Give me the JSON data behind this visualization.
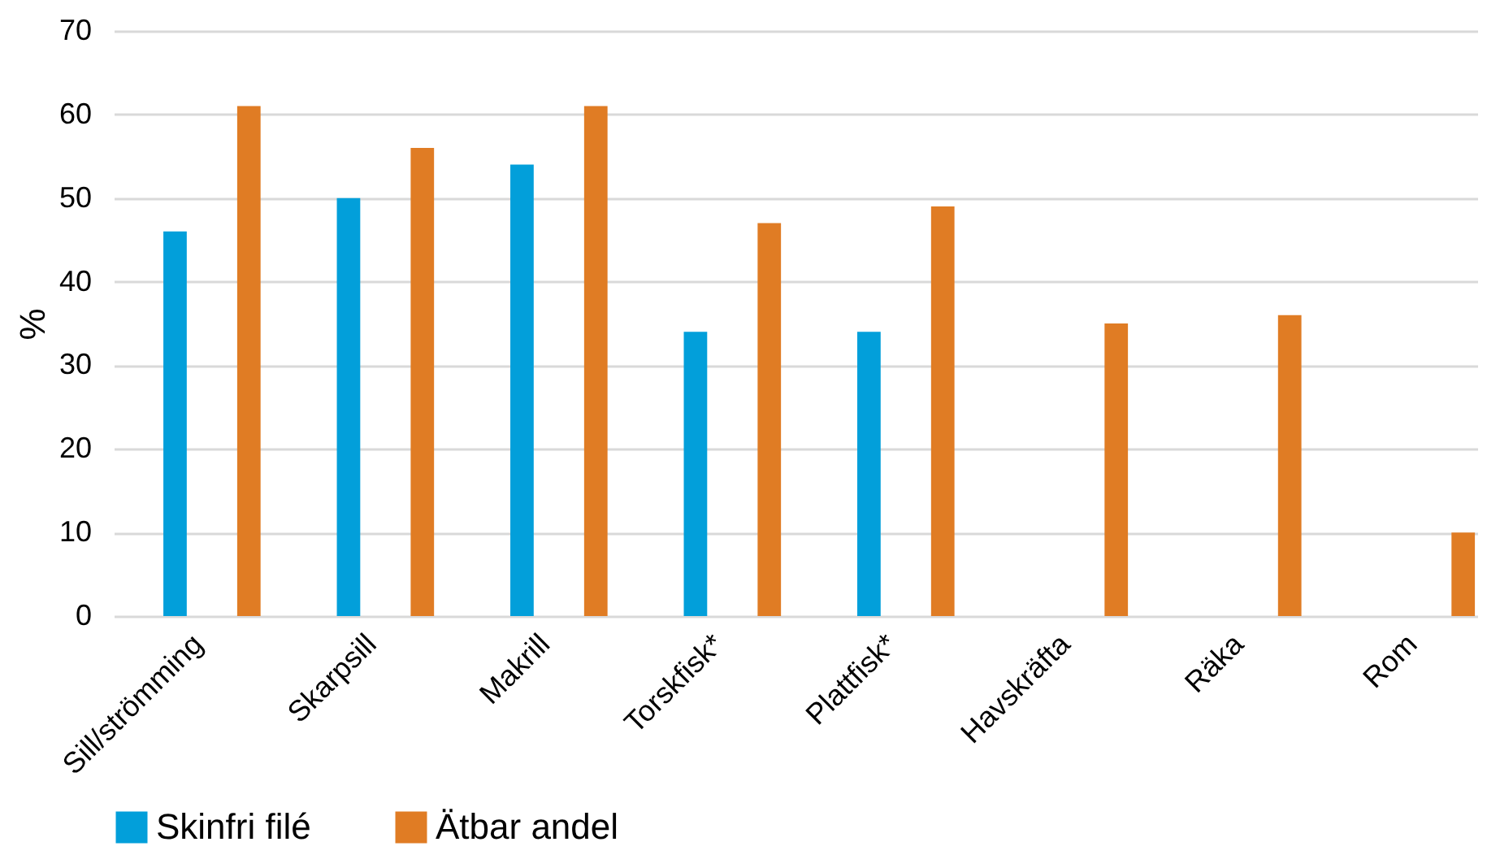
{
  "chart_data": {
    "type": "bar",
    "ylabel": "%",
    "categories": [
      "Sill/strömming",
      "Skarpsill",
      "Makrill",
      "Torskfisk*",
      "Plattfisk*",
      "Havskräfta",
      "Räka",
      "Rom"
    ],
    "series": [
      {
        "name": "Skinfri filé",
        "color": "#029fda",
        "values": [
          46,
          50,
          54,
          34,
          34,
          null,
          null,
          null
        ]
      },
      {
        "name": "Ätbar andel",
        "color": "#e07c24",
        "values": [
          61,
          56,
          61,
          47,
          49,
          35,
          36,
          10
        ]
      }
    ],
    "ylim": [
      0,
      70
    ],
    "yticks": [
      0,
      10,
      20,
      30,
      40,
      50,
      60,
      70
    ],
    "grid": "y",
    "legend": "bottom"
  }
}
